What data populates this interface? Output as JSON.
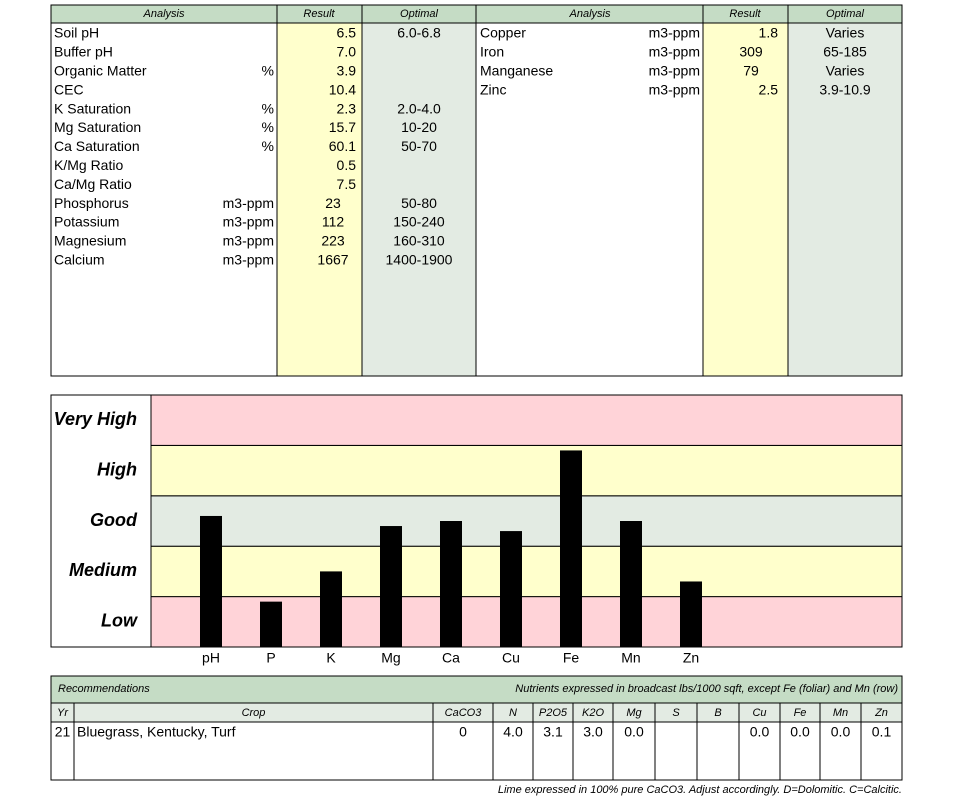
{
  "soil_table": {
    "headers": [
      "Analysis",
      "Result",
      "Optimal"
    ],
    "left_rows": [
      [
        "Soil pH",
        null,
        "6.5",
        "6.0-6.8"
      ],
      [
        "Buffer pH",
        null,
        "7.0",
        null
      ],
      [
        "Organic Matter",
        "%",
        "3.9",
        null
      ],
      [
        "CEC",
        null,
        "10.4",
        null
      ],
      [
        "K Saturation",
        "%",
        "2.3",
        "2.0-4.0"
      ],
      [
        "Mg Saturation",
        "%",
        "15.7",
        "10-20"
      ],
      [
        "Ca Saturation",
        "%",
        "60.1",
        "50-70"
      ],
      [
        "K/Mg Ratio",
        null,
        "0.5",
        null
      ],
      [
        "Ca/Mg Ratio",
        null,
        "7.5",
        null
      ],
      [
        "Phosphorus",
        "m3-ppm",
        "23",
        "50-80"
      ],
      [
        "Potassium",
        "m3-ppm",
        "112",
        "150-240"
      ],
      [
        "Magnesium",
        "m3-ppm",
        "223",
        "160-310"
      ],
      [
        "Calcium",
        "m3-ppm",
        "1667",
        "1400-1900"
      ]
    ],
    "right_rows": [
      [
        "Copper",
        "m3-ppm",
        "1.8",
        "Varies"
      ],
      [
        "Iron",
        "m3-ppm",
        "309",
        "65-185"
      ],
      [
        "Manganese",
        "m3-ppm",
        "79",
        "Varies"
      ],
      [
        "Zinc",
        "m3-ppm",
        "2.5",
        "3.9-10.9"
      ]
    ]
  },
  "chart_data": {
    "type": "bar",
    "categories": [
      "pH",
      "P",
      "K",
      "Mg",
      "Ca",
      "Cu",
      "Fe",
      "Mn",
      "Zn"
    ],
    "values": [
      2.6,
      0.9,
      1.5,
      2.4,
      2.5,
      2.3,
      3.9,
      2.5,
      1.3
    ],
    "ylim": [
      0,
      5
    ],
    "levels": [
      "Low",
      "Medium",
      "Good",
      "High",
      "Very High"
    ],
    "level_colors": [
      "#ffd3d8",
      "#ffffcc",
      "#e3ebe3",
      "#ffffcc",
      "#ffd3d8"
    ],
    "color": "#000000"
  },
  "recommendations": {
    "title": "Recommendations",
    "note": "Nutrients expressed in broadcast lbs/1000 sqft, except Fe (foliar) and Mn (row)",
    "headers": [
      "Yr",
      "Crop",
      "CaCO3",
      "N",
      "P2O5",
      "K2O",
      "Mg",
      "S",
      "B",
      "Cu",
      "Fe",
      "Mn",
      "Zn"
    ],
    "rows": [
      [
        "21",
        "Bluegrass, Kentucky, Turf",
        "0",
        "4.0",
        "3.1",
        "3.0",
        "0.0",
        null,
        null,
        "0.0",
        "0.0",
        "0.0",
        "0.1"
      ]
    ]
  },
  "footer": "Lime expressed in 100% pure CaCO3.  Adjust accordingly.  D=Dolomitic.  C=Calcitic."
}
